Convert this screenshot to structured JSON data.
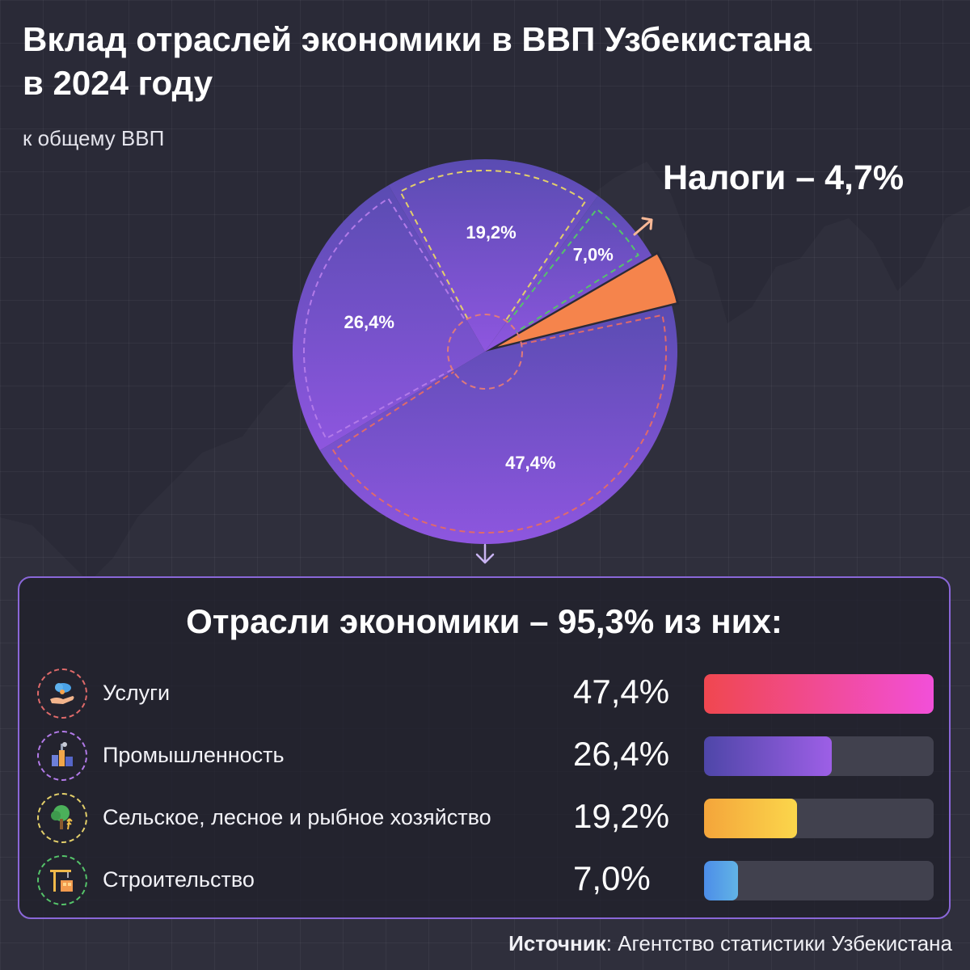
{
  "header": {
    "title_line1": "Вклад отраслей экономики в ВВП Узбекистана",
    "title_line2": "в 2024 году",
    "subtitle": "к общему ВВП"
  },
  "tax_callout": "Налоги – 4,7%",
  "panel": {
    "title": "Отрасли экономики – 95,3% из них:"
  },
  "source": {
    "label": "Источник",
    "value": ": Агентство статистики Узбекистана"
  },
  "colors": {
    "background": "#2a2a37",
    "pie_fill_top": "#5b4fb3",
    "pie_fill_bottom": "#8c57dd",
    "tax": "#f5844c",
    "panel_border": "#8a67d8",
    "bar_track": "#41414e",
    "services_outline": "#e06a6a",
    "industry_outline": "#b27ae8",
    "agriculture_outline": "#e3cf6a",
    "construction_outline": "#55c46a"
  },
  "chart_data": {
    "type": "pie",
    "unit": "%",
    "start_angle_deg": 60,
    "direction": "clockwise",
    "slices": [
      {
        "key": "tax",
        "name": "Налоги",
        "value": 4.7,
        "label": "4,7%",
        "color": "#f5844c",
        "outline": "#2a2a37",
        "exploded": true
      },
      {
        "key": "services",
        "name": "Услуги",
        "value": 47.4,
        "label": "47,4%",
        "color": "#8c57dd",
        "outline": "#e06a6a"
      },
      {
        "key": "industry",
        "name": "Промышленность",
        "value": 26.4,
        "label": "26,4%",
        "color": "#6b4fc4",
        "outline": "#b27ae8"
      },
      {
        "key": "agriculture",
        "name": "Сельское, лесное и рыбное хозяйство",
        "value": 19.2,
        "label": "19,2%",
        "color": "#5a4eb6",
        "outline": "#e3cf6a"
      },
      {
        "key": "construction",
        "name": "Строительство",
        "value": 7.0,
        "label": "7,0%",
        "color": "#5a4eb6",
        "outline": "#55c46a"
      }
    ],
    "bars": {
      "type": "bar",
      "orientation": "horizontal",
      "scale_max": 47.4,
      "items": [
        {
          "key": "services",
          "name": "Услуги",
          "value": 47.4,
          "label": "47,4%",
          "gradient": [
            "#f0474f",
            "#f24fd9"
          ],
          "icon": "cloud-hand-icon",
          "outline": "#e06a6a"
        },
        {
          "key": "industry",
          "name": "Промышленность",
          "value": 26.4,
          "label": "26,4%",
          "gradient": [
            "#4e46a8",
            "#9d5fe6"
          ],
          "icon": "factory-icon",
          "outline": "#b27ae8"
        },
        {
          "key": "agriculture",
          "name": "Сельское, лесное и рыбное хозяйство",
          "value": 19.2,
          "label": "19,2%",
          "gradient": [
            "#f4a53b",
            "#fbd64b"
          ],
          "icon": "tree-wheat-icon",
          "outline": "#e3cf6a"
        },
        {
          "key": "construction",
          "name": "Строительство",
          "value": 7.0,
          "label": "7,0%",
          "gradient": [
            "#4c8de8",
            "#62b4e6"
          ],
          "icon": "crane-icon",
          "outline": "#55c46a"
        }
      ]
    }
  }
}
